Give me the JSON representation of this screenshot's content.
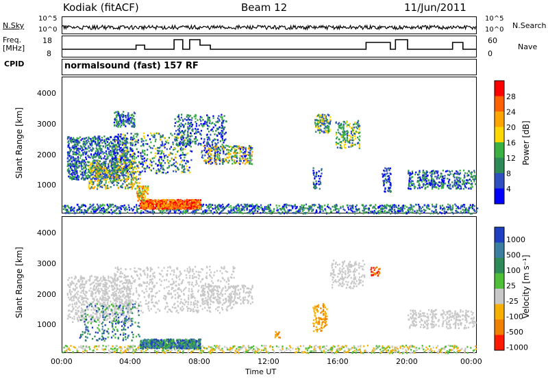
{
  "header": {
    "station": "Kodiak (fitACF)",
    "beam": "Beam 12",
    "date": "11/Jun/2011"
  },
  "strip": {
    "nsky_label": "N.Sky",
    "nsearch_label": "N.Search",
    "freq_label_line1": "Freq.",
    "freq_label_line2": "[MHz]",
    "nave_label": "Nave",
    "cpid_label": "CPID",
    "cpid_value": "normalsound (fast) 157 RF",
    "nsky_ticks": [
      "10^5",
      "10^0"
    ],
    "nsearch_ticks": [
      "10^5",
      "10^0"
    ],
    "freq_ticks": [
      "18",
      "8"
    ],
    "nave_ticks": [
      "60",
      "0"
    ]
  },
  "xaxis": {
    "label": "Time UT",
    "ticks": [
      "00:00",
      "04:00",
      "08:00",
      "12:00",
      "16:00",
      "20:00",
      "00:00"
    ]
  },
  "power_panel": {
    "ylabel": "Slant Range [km]",
    "yticks": [
      "1000",
      "2000",
      "3000",
      "4000"
    ],
    "colorbar_label": "Power [dB]",
    "colorbar_ticks": [
      "4",
      "8",
      "12",
      "16",
      "20",
      "24",
      "28"
    ],
    "colors": [
      "#0000ff",
      "#3050c0",
      "#2e8b57",
      "#3cb043",
      "#ffd700",
      "#ffa500",
      "#ff6000",
      "#ff0000"
    ]
  },
  "velocity_panel": {
    "ylabel": "Slant Range [km]",
    "yticks": [
      "1000",
      "2000",
      "3000",
      "4000"
    ],
    "colorbar_label": "Velocity [m s⁻¹]",
    "colorbar_ticks": [
      "1000",
      "500",
      "100",
      "25",
      "-25",
      "-100",
      "-500",
      "-1000"
    ],
    "colors": [
      "#1e3fbf",
      "#3a7fa0",
      "#2e8b57",
      "#4fbf3a",
      "#c8c8c8",
      "#f7b000",
      "#f08000",
      "#ff1a00"
    ]
  },
  "chart_data": [
    {
      "type": "heatmap",
      "title": "Power",
      "xlabel": "Time UT",
      "ylabel": "Slant Range [km]",
      "xlim": [
        "00:00",
        "24:00"
      ],
      "ylim": [
        180,
        4600
      ],
      "colorbar": {
        "label": "Power [dB]",
        "range": [
          0,
          30
        ],
        "ticks": [
          4,
          8,
          12,
          16,
          20,
          24,
          28
        ]
      },
      "features": [
        {
          "time": [
            "00:30",
            "10:00"
          ],
          "range_km": [
            1200,
            3500
          ],
          "power_db": [
            4,
            20
          ]
        },
        {
          "time": [
            "04:30",
            "08:00"
          ],
          "range_km": [
            300,
            700
          ],
          "power_db": [
            24,
            30
          ]
        },
        {
          "time": [
            "00:00",
            "24:00"
          ],
          "range_km": [
            200,
            500
          ],
          "power_db": [
            4,
            12
          ]
        }
      ]
    },
    {
      "type": "heatmap",
      "title": "Velocity",
      "xlabel": "Time UT",
      "ylabel": "Slant Range [km]",
      "xlim": [
        "00:00",
        "24:00"
      ],
      "ylim": [
        180,
        4600
      ],
      "colorbar": {
        "label": "Velocity [m s⁻¹]",
        "ticks": [
          1000,
          500,
          100,
          25,
          -25,
          -100,
          -500,
          -1000
        ]
      },
      "features": [
        {
          "time": [
            "04:30",
            "08:00"
          ],
          "range_km": [
            300,
            700
          ],
          "velocity_ms": [
            100,
            1000
          ]
        },
        {
          "time": [
            "00:00",
            "10:00"
          ],
          "range_km": [
            1200,
            3000
          ],
          "velocity_ms": [
            -25,
            25
          ]
        },
        {
          "time": [
            "14:30",
            "15:30"
          ],
          "range_km": [
            900,
            1800
          ],
          "velocity_ms": [
            -500,
            -100
          ]
        }
      ]
    }
  ]
}
